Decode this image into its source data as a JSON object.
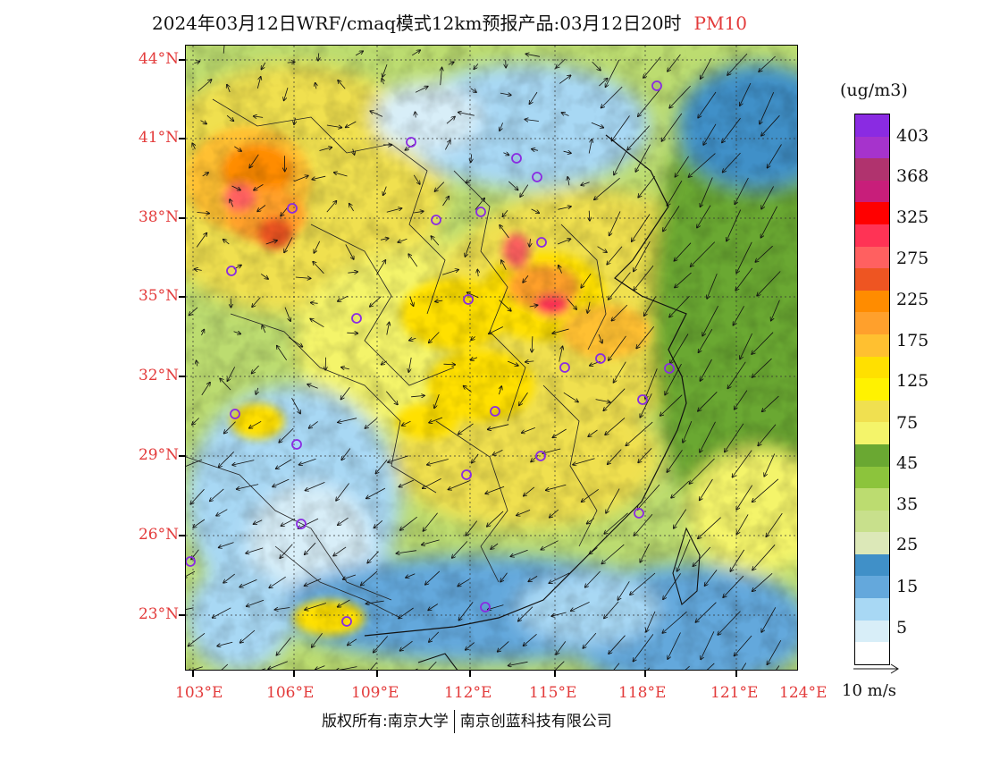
{
  "title": {
    "main": "2024年03月12日WRF/cmaq模式12km预报产品:03月12日20时",
    "species": "PM10"
  },
  "map": {
    "lat_labels": [
      "44°N",
      "41°N",
      "38°N",
      "35°N",
      "32°N",
      "29°N",
      "26°N",
      "23°N"
    ],
    "lon_labels": [
      "103°E",
      "106°E",
      "109°E",
      "112°E",
      "115°E",
      "118°E",
      "121°E",
      "124°E"
    ],
    "lat_range": [
      21,
      44.5
    ],
    "lon_range": [
      103,
      124
    ]
  },
  "legend": {
    "unit": "(ug/m3)",
    "labels": [
      "403",
      "368",
      "325",
      "275",
      "225",
      "175",
      "125",
      "75",
      "45",
      "35",
      "25",
      "15",
      "5"
    ],
    "colors": [
      "#8a2be2",
      "#a633cc",
      "#b0336e",
      "#c81e7a",
      "#ff0000",
      "#ff3355",
      "#ff6060",
      "#ee5522",
      "#ff8c00",
      "#ffa02c",
      "#ffc030",
      "#ffe000",
      "#fff200",
      "#f0e050",
      "#f4f46a",
      "#6aa832",
      "#8cc43c",
      "#bcdc70",
      "#c8e08c",
      "#dce8b8",
      "#4090c8",
      "#64a8dc",
      "#a8d8f4",
      "#d8eef8",
      "#ffffff"
    ]
  },
  "vector_key": {
    "label": "10 m/s"
  },
  "footer": {
    "left": "版权所有:南京大学",
    "right": "南京创蓝科技有限公司"
  }
}
